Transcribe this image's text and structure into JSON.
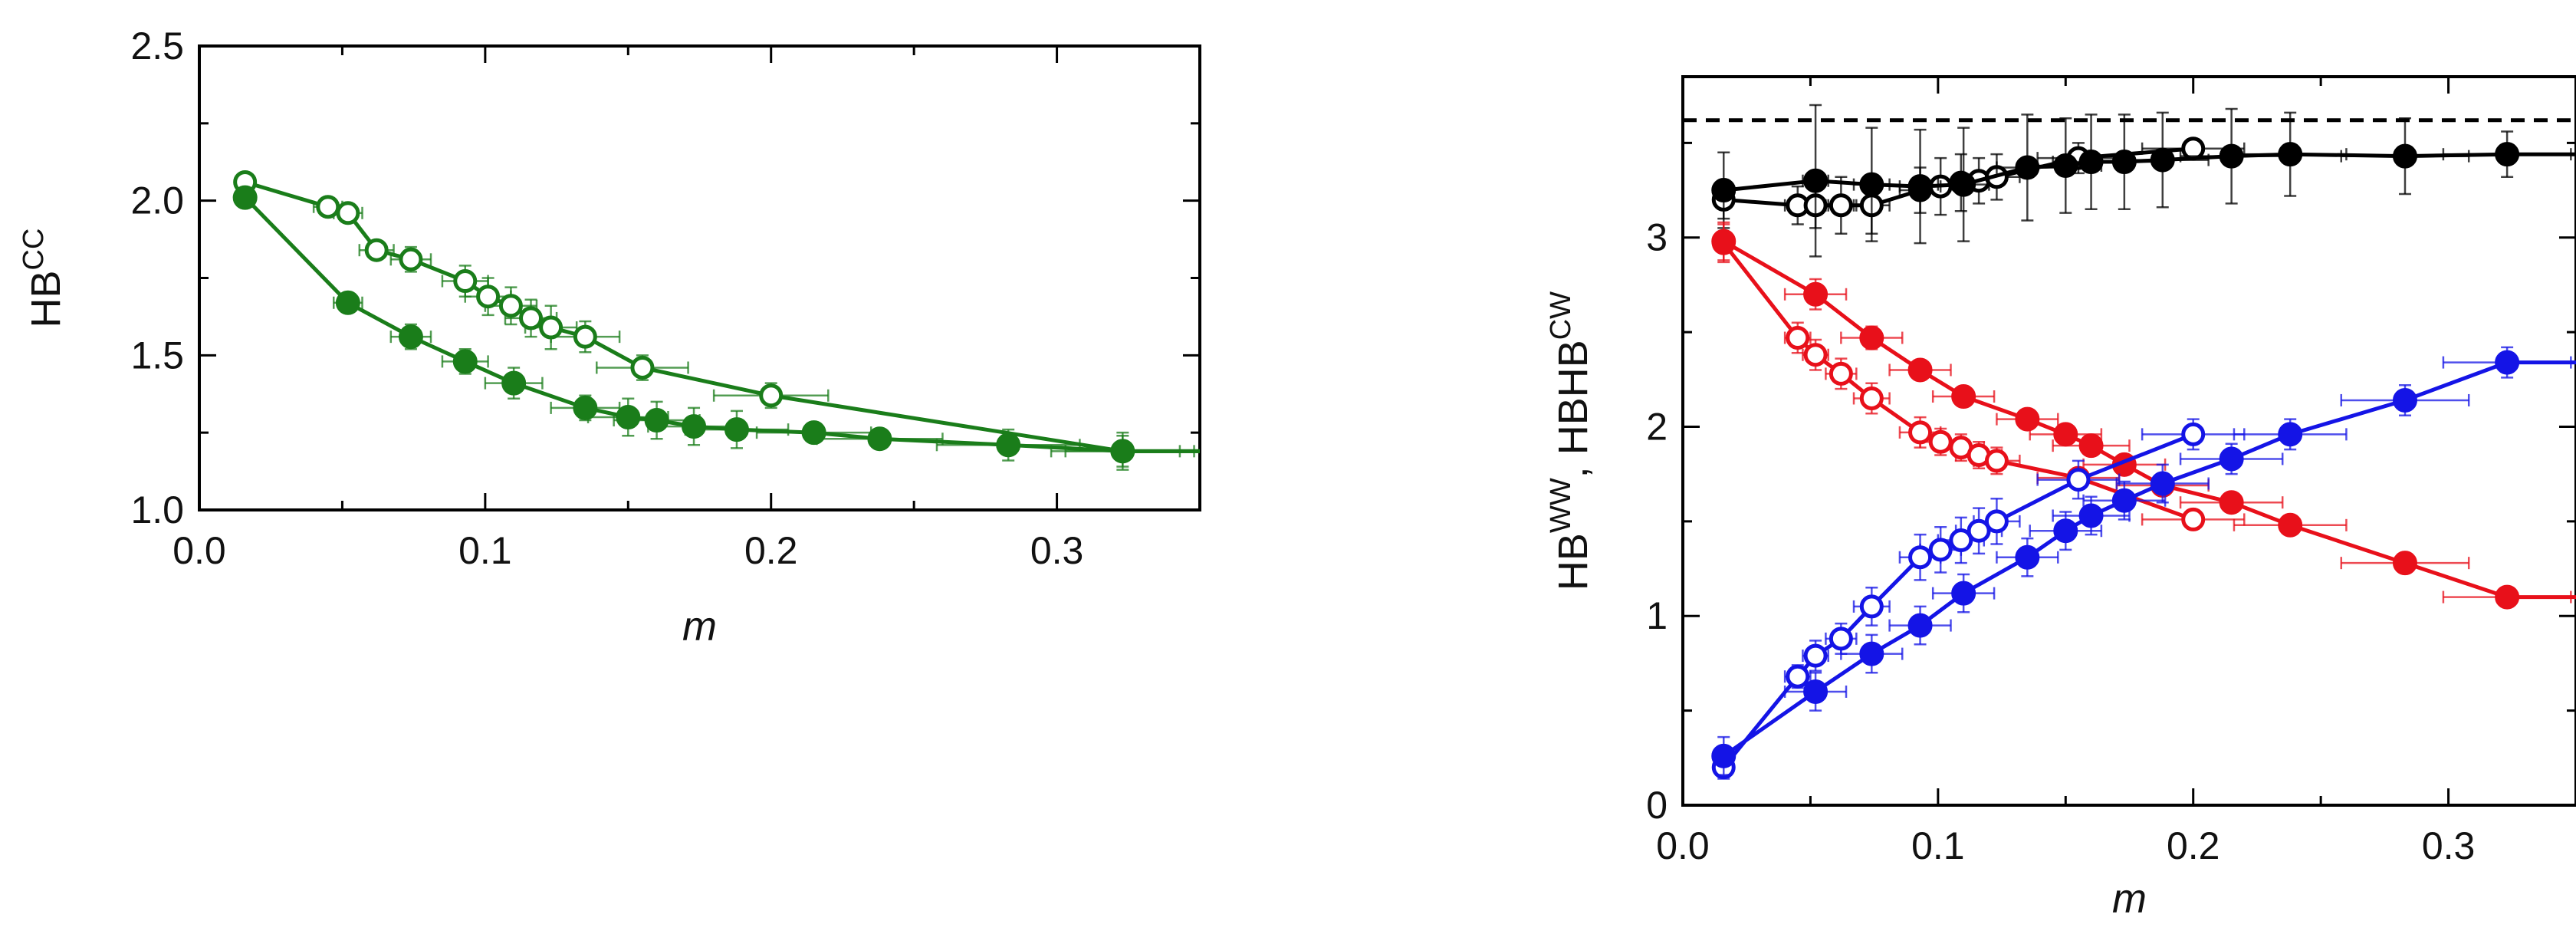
{
  "chart_data": [
    {
      "type": "line",
      "xlabel": "m",
      "ylabel": "HB",
      "ylabel_sup": "CC",
      "xlim": [
        0.0,
        0.35
      ],
      "ylim": [
        1.0,
        2.5
      ],
      "x_ticks": [
        "0.0",
        "0.1",
        "0.2",
        "0.3"
      ],
      "y_ticks": [
        "1.0",
        "1.5",
        "2.0",
        "2.5"
      ],
      "grid": false,
      "colors": {
        "green": "#1a7d1a"
      },
      "series": [
        {
          "marker": "open-circle",
          "color": "#1a7d1a",
          "x": [
            0.016,
            0.045,
            0.052,
            0.062,
            0.074,
            0.093,
            0.101,
            0.109,
            0.116,
            0.123,
            0.135,
            0.155,
            0.2,
            0.323
          ],
          "y": [
            2.06,
            1.98,
            1.96,
            1.84,
            1.81,
            1.74,
            1.69,
            1.66,
            1.62,
            1.59,
            1.56,
            1.46,
            1.37,
            1.19
          ],
          "xerr": [
            0.002,
            0.005,
            0.005,
            0.006,
            0.007,
            0.008,
            0.008,
            0.009,
            0.009,
            0.009,
            0.012,
            0.016,
            0.02,
            0.02
          ],
          "yerr": [
            0.02,
            0.02,
            0.03,
            0.03,
            0.04,
            0.05,
            0.06,
            0.06,
            0.06,
            0.07,
            0.05,
            0.04,
            0.04,
            0.05
          ]
        },
        {
          "marker": "filled-circle",
          "color": "#1a7d1a",
          "x": [
            0.016,
            0.052,
            0.074,
            0.093,
            0.11,
            0.135,
            0.15,
            0.16,
            0.173,
            0.188,
            0.215,
            0.238,
            0.283,
            0.323
          ],
          "y": [
            2.01,
            1.67,
            1.56,
            1.48,
            1.41,
            1.33,
            1.3,
            1.29,
            1.27,
            1.26,
            1.25,
            1.23,
            1.21,
            1.19
          ],
          "xerr": [
            0.002,
            0.005,
            0.007,
            0.008,
            0.01,
            0.012,
            0.014,
            0.015,
            0.016,
            0.018,
            0.02,
            0.022,
            0.025,
            0.025
          ],
          "yerr": [
            0.03,
            0.03,
            0.04,
            0.04,
            0.05,
            0.04,
            0.06,
            0.06,
            0.06,
            0.06,
            0.03,
            0.03,
            0.05,
            0.06
          ]
        }
      ]
    },
    {
      "type": "line",
      "xlabel": "m",
      "ylabel": "HB",
      "ylabel_sup1": "WW",
      "ylabel_mid": ", HB",
      "ylabel_sup2": "CW",
      "xlim": [
        0.0,
        0.35
      ],
      "ylim": [
        0,
        3.85
      ],
      "x_ticks": [
        "0.0",
        "0.1",
        "0.2",
        "0.3"
      ],
      "y_ticks": [
        "0",
        "1",
        "2",
        "3"
      ],
      "grid": false,
      "reference_line": {
        "y": 3.62,
        "style": "dashed",
        "color": "#000000"
      },
      "colors": {
        "black": "#000000",
        "red": "#e8101a",
        "blue": "#1414e6"
      },
      "series": [
        {
          "marker": "open-circle",
          "color": "#000000",
          "x": [
            0.016,
            0.045,
            0.052,
            0.062,
            0.074,
            0.093,
            0.101,
            0.109,
            0.116,
            0.123,
            0.155,
            0.2
          ],
          "y": [
            3.2,
            3.17,
            3.17,
            3.17,
            3.17,
            3.25,
            3.27,
            3.29,
            3.3,
            3.32,
            3.42,
            3.47
          ],
          "xerr": [
            0.002,
            0.005,
            0.005,
            0.006,
            0.007,
            0.008,
            0.008,
            0.009,
            0.009,
            0.009,
            0.016,
            0.02
          ],
          "yerr": [
            0.1,
            0.1,
            0.12,
            0.15,
            0.15,
            0.12,
            0.15,
            0.15,
            0.12,
            0.12,
            0.08,
            0.05
          ]
        },
        {
          "marker": "filled-circle",
          "color": "#000000",
          "x": [
            0.016,
            0.052,
            0.074,
            0.093,
            0.11,
            0.135,
            0.15,
            0.16,
            0.173,
            0.188,
            0.215,
            0.238,
            0.283,
            0.323
          ],
          "y": [
            3.25,
            3.3,
            3.28,
            3.27,
            3.28,
            3.37,
            3.38,
            3.4,
            3.4,
            3.41,
            3.43,
            3.44,
            3.43,
            3.44
          ],
          "xerr": [
            0.002,
            0.005,
            0.007,
            0.008,
            0.01,
            0.012,
            0.014,
            0.015,
            0.016,
            0.018,
            0.02,
            0.022,
            0.025,
            0.025
          ],
          "yerr": [
            0.2,
            0.4,
            0.3,
            0.3,
            0.3,
            0.28,
            0.25,
            0.25,
            0.25,
            0.25,
            0.25,
            0.22,
            0.2,
            0.12
          ]
        },
        {
          "marker": "open-circle",
          "color": "#e8101a",
          "x": [
            0.016,
            0.045,
            0.052,
            0.062,
            0.074,
            0.093,
            0.101,
            0.109,
            0.116,
            0.123,
            0.155,
            0.2
          ],
          "y": [
            2.97,
            2.47,
            2.38,
            2.28,
            2.15,
            1.97,
            1.92,
            1.89,
            1.85,
            1.82,
            1.73,
            1.51
          ],
          "xerr": [
            0.002,
            0.005,
            0.005,
            0.006,
            0.007,
            0.008,
            0.008,
            0.009,
            0.009,
            0.009,
            0.016,
            0.02
          ],
          "yerr": [
            0.1,
            0.08,
            0.08,
            0.08,
            0.08,
            0.08,
            0.07,
            0.07,
            0.07,
            0.07,
            0.05,
            0.05
          ]
        },
        {
          "marker": "filled-circle",
          "color": "#e8101a",
          "x": [
            0.016,
            0.052,
            0.074,
            0.093,
            0.11,
            0.135,
            0.15,
            0.16,
            0.173,
            0.188,
            0.215,
            0.238,
            0.283,
            0.323
          ],
          "y": [
            2.98,
            2.7,
            2.47,
            2.3,
            2.16,
            2.04,
            1.96,
            1.9,
            1.8,
            1.69,
            1.6,
            1.48,
            1.28,
            1.1
          ],
          "xerr": [
            0.002,
            0.012,
            0.012,
            0.012,
            0.012,
            0.012,
            0.014,
            0.015,
            0.016,
            0.018,
            0.02,
            0.022,
            0.025,
            0.025
          ],
          "yerr": [
            0.1,
            0.08,
            0.06,
            0.05,
            0.05,
            0.05,
            0.05,
            0.05,
            0.05,
            0.05,
            0.04,
            0.04,
            0.05,
            0.04
          ]
        },
        {
          "marker": "open-circle",
          "color": "#1414e6",
          "x": [
            0.016,
            0.045,
            0.052,
            0.062,
            0.074,
            0.093,
            0.101,
            0.109,
            0.116,
            0.123,
            0.155,
            0.2
          ],
          "y": [
            0.2,
            0.68,
            0.79,
            0.88,
            1.05,
            1.31,
            1.35,
            1.4,
            1.45,
            1.5,
            1.72,
            1.96
          ],
          "xerr": [
            0.002,
            0.005,
            0.005,
            0.006,
            0.007,
            0.008,
            0.008,
            0.009,
            0.009,
            0.009,
            0.016,
            0.02
          ],
          "yerr": [
            0.06,
            0.06,
            0.08,
            0.08,
            0.1,
            0.12,
            0.12,
            0.12,
            0.12,
            0.12,
            0.1,
            0.08
          ]
        },
        {
          "marker": "filled-circle",
          "color": "#1414e6",
          "x": [
            0.016,
            0.052,
            0.074,
            0.093,
            0.11,
            0.135,
            0.15,
            0.16,
            0.173,
            0.188,
            0.215,
            0.238,
            0.283,
            0.323
          ],
          "y": [
            0.26,
            0.6,
            0.8,
            0.95,
            1.12,
            1.31,
            1.45,
            1.53,
            1.61,
            1.7,
            1.83,
            1.96,
            2.14,
            2.34
          ],
          "xerr": [
            0.002,
            0.012,
            0.012,
            0.012,
            0.012,
            0.012,
            0.014,
            0.015,
            0.016,
            0.018,
            0.02,
            0.022,
            0.025,
            0.025
          ],
          "yerr": [
            0.1,
            0.1,
            0.1,
            0.1,
            0.1,
            0.1,
            0.1,
            0.1,
            0.1,
            0.1,
            0.08,
            0.08,
            0.08,
            0.08
          ]
        }
      ]
    }
  ]
}
